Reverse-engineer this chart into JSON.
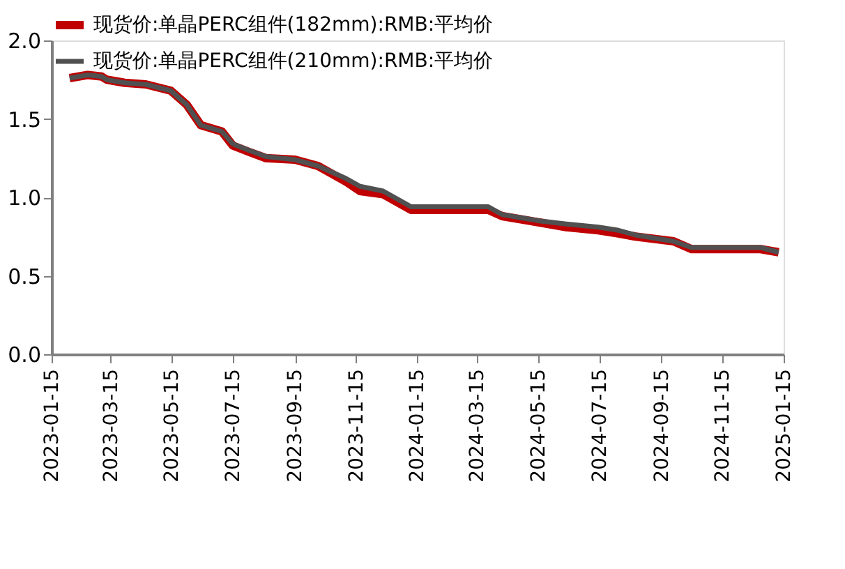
{
  "chart_data": {
    "type": "line",
    "x": [
      "2023-02-02",
      "2023-02-20",
      "2023-03-06",
      "2023-03-11",
      "2023-03-29",
      "2023-04-19",
      "2023-05-14",
      "2023-05-30",
      "2023-06-13",
      "2023-07-04",
      "2023-07-15",
      "2023-07-31",
      "2023-08-17",
      "2023-09-15",
      "2023-10-08",
      "2023-11-05",
      "2023-11-19",
      "2023-12-12",
      "2024-01-09",
      "2024-03-26",
      "2024-04-09",
      "2024-05-16",
      "2024-06-12",
      "2024-07-14",
      "2024-08-03",
      "2024-08-20",
      "2024-09-27",
      "2024-10-15",
      "2024-12-23",
      "2025-01-10"
    ],
    "series": [
      {
        "name": "现货价:单晶PERC组件(182mm):RMB:平均价",
        "color": "#c00000",
        "values": [
          1.76,
          1.78,
          1.77,
          1.75,
          1.73,
          1.72,
          1.68,
          1.59,
          1.46,
          1.42,
          1.33,
          1.29,
          1.25,
          1.24,
          1.2,
          1.1,
          1.04,
          1.02,
          0.92,
          0.92,
          0.88,
          0.84,
          0.81,
          0.79,
          0.77,
          0.75,
          0.72,
          0.67,
          0.67,
          0.65
        ]
      },
      {
        "name": "现货价:单晶PERC组件(210mm):RMB:平均价",
        "color": "#505050",
        "values": [
          1.76,
          1.78,
          1.77,
          1.75,
          1.73,
          1.72,
          1.68,
          1.59,
          1.46,
          1.42,
          1.34,
          1.3,
          1.26,
          1.24,
          1.2,
          1.12,
          1.07,
          1.04,
          0.94,
          0.94,
          0.89,
          0.85,
          0.83,
          0.81,
          0.79,
          0.76,
          0.72,
          0.68,
          0.68,
          0.65
        ]
      }
    ],
    "xlim": [
      "2023-01-15",
      "2025-01-15"
    ],
    "xticks": [
      "2023-01-15",
      "2023-03-15",
      "2023-05-15",
      "2023-07-15",
      "2023-09-15",
      "2023-11-15",
      "2024-01-15",
      "2024-03-15",
      "2024-05-15",
      "2024-07-15",
      "2024-09-15",
      "2024-11-15",
      "2025-01-15"
    ],
    "ylim": [
      0,
      2.0
    ],
    "yticks": [
      {
        "value": 0,
        "label": "0.0"
      },
      {
        "value": 0.5,
        "label": "0.5"
      },
      {
        "value": 1.0,
        "label": "1.0"
      },
      {
        "value": 1.5,
        "label": "1.5"
      },
      {
        "value": 2.0,
        "label": "2.0"
      }
    ],
    "grid": false,
    "legend": "top",
    "marker": "none",
    "line_style": "solid"
  }
}
